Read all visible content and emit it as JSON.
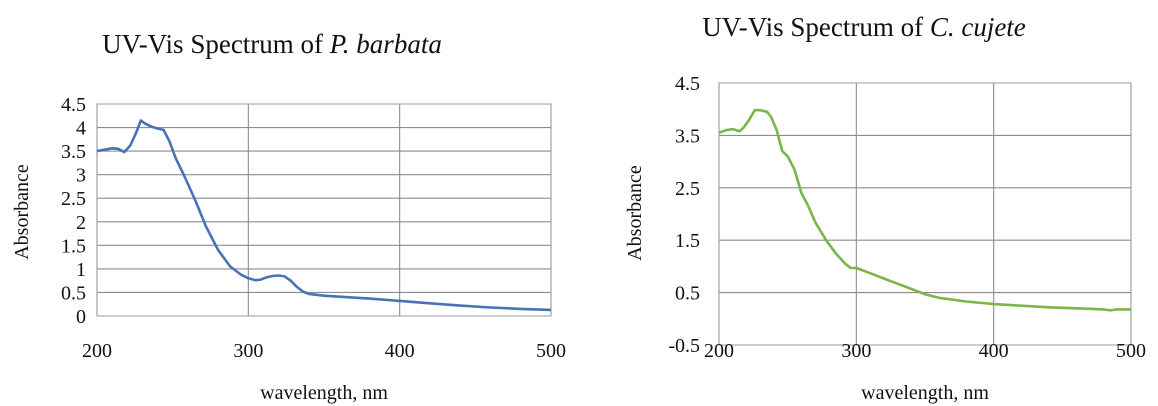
{
  "chart_data": [
    {
      "type": "line",
      "title": "UV-Vis Spectrum of ",
      "title_italic": "P. barbata",
      "xlabel": "wavelength, nm",
      "ylabel": "Absorbance",
      "xlim": [
        200,
        500
      ],
      "ylim": [
        0,
        4.5
      ],
      "xticks": [
        "200",
        "300",
        "400",
        "500"
      ],
      "yticks": [
        "0",
        "0.5",
        "1",
        "1.5",
        "2",
        "2.5",
        "3",
        "3.5",
        "4",
        "4.5"
      ],
      "grid": true,
      "color": "#4a72b8",
      "series": [
        {
          "x": [
            200,
            205,
            210,
            214,
            218,
            222,
            226,
            229,
            232,
            236,
            240,
            244,
            248,
            252,
            258,
            265,
            272,
            280,
            288,
            295,
            300,
            305,
            308,
            312,
            316,
            320,
            324,
            328,
            332,
            336,
            340,
            350,
            360,
            380,
            400,
            420,
            440,
            460,
            480,
            500
          ],
          "y": [
            3.5,
            3.53,
            3.56,
            3.55,
            3.48,
            3.62,
            3.9,
            4.15,
            4.08,
            4.02,
            3.98,
            3.95,
            3.7,
            3.35,
            2.95,
            2.45,
            1.9,
            1.4,
            1.05,
            0.88,
            0.8,
            0.76,
            0.77,
            0.82,
            0.85,
            0.86,
            0.84,
            0.75,
            0.62,
            0.52,
            0.47,
            0.43,
            0.41,
            0.37,
            0.32,
            0.27,
            0.22,
            0.18,
            0.15,
            0.13
          ]
        }
      ]
    },
    {
      "type": "line",
      "title": "UV-Vis Spectrum of ",
      "title_italic": "C. cujete",
      "xlabel": "wavelength, nm",
      "ylabel": "Absorbance",
      "xlim": [
        200,
        500
      ],
      "ylim": [
        -0.5,
        4.5
      ],
      "xticks": [
        "200",
        "300",
        "400",
        "500"
      ],
      "yticks": [
        "-0.5",
        "0.5",
        "1.5",
        "2.5",
        "3.5",
        "4.5"
      ],
      "grid": true,
      "color": "#7ab648",
      "series": [
        {
          "x": [
            200,
            205,
            210,
            215,
            218,
            222,
            226,
            230,
            235,
            238,
            242,
            246,
            250,
            255,
            260,
            265,
            270,
            278,
            285,
            292,
            296,
            300,
            310,
            320,
            330,
            340,
            350,
            360,
            380,
            400,
            420,
            440,
            460,
            470,
            480,
            485,
            490,
            500
          ],
          "y": [
            3.55,
            3.6,
            3.62,
            3.58,
            3.65,
            3.8,
            3.98,
            3.98,
            3.95,
            3.85,
            3.6,
            3.2,
            3.1,
            2.85,
            2.4,
            2.15,
            1.85,
            1.5,
            1.25,
            1.05,
            0.97,
            0.97,
            0.87,
            0.77,
            0.67,
            0.57,
            0.47,
            0.4,
            0.33,
            0.28,
            0.25,
            0.22,
            0.2,
            0.19,
            0.18,
            0.16,
            0.18,
            0.18
          ]
        }
      ]
    }
  ]
}
